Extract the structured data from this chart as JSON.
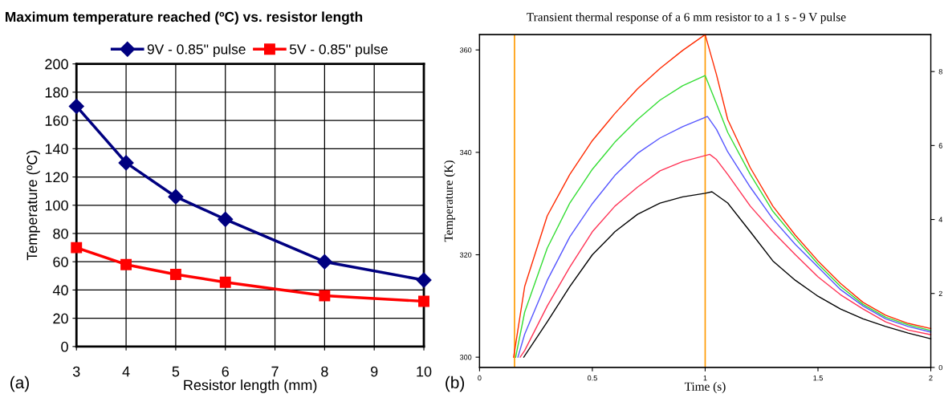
{
  "chart_data": [
    {
      "type": "line",
      "title": "Maximum temperature reached (ºC) vs. resistor length",
      "xlabel": "Resistor length (mm)",
      "ylabel": "Temperature (ºC)",
      "x": [
        3,
        4,
        5,
        6,
        8,
        10
      ],
      "xlim": [
        3,
        10
      ],
      "xticks": [
        3,
        4,
        5,
        6,
        7,
        8,
        9,
        10
      ],
      "ylim": [
        0,
        200
      ],
      "yticks": [
        0,
        20,
        40,
        60,
        80,
        100,
        120,
        140,
        160,
        180,
        200
      ],
      "grid": true,
      "legend": "top",
      "line_style": "solid",
      "annotations": [
        "(a)"
      ],
      "series": [
        {
          "name": "9V - 0.85'' pulse",
          "color": "#000080",
          "marker": "diamond",
          "values": [
            170,
            130,
            106,
            90,
            60,
            47
          ]
        },
        {
          "name": "5V - 0.85'' pulse",
          "color": "#ff0000",
          "marker": "square",
          "values": [
            70,
            58,
            51,
            45.5,
            36,
            32
          ]
        }
      ]
    },
    {
      "type": "line",
      "title": "Transient thermal response of a 6 mm resistor to a 1 s - 9 V pulse",
      "xlabel": "Time (s)",
      "ylabel": "Temperature (K)",
      "xlim": [
        0,
        2
      ],
      "xticks": [
        0,
        0.5,
        1,
        1.5,
        2
      ],
      "ylim": [
        298,
        363
      ],
      "yticks": [
        300,
        320,
        340,
        360
      ],
      "y2lim": [
        0,
        9
      ],
      "y2ticks": [
        0,
        2,
        4,
        6,
        8
      ],
      "grid": false,
      "annotations": [
        "(b)"
      ],
      "ref_lines": [
        {
          "axis": "x",
          "value": 0.155,
          "color": "#ff9900"
        },
        {
          "axis": "x",
          "value": 1.0,
          "color": "#ff9900"
        }
      ],
      "series": [
        {
          "color": "#ff2a00",
          "x": [
            0.151,
            0.2,
            0.3,
            0.4,
            0.5,
            0.6,
            0.7,
            0.8,
            0.9,
            1.0,
            1.05,
            1.1,
            1.2,
            1.3,
            1.4,
            1.5,
            1.6,
            1.7,
            1.8,
            1.9,
            2.0
          ],
          "values": [
            300,
            313.8,
            327.6,
            335.7,
            342.3,
            347.6,
            352.4,
            356.4,
            359.9,
            363,
            355.2,
            346.4,
            337,
            329.5,
            323.8,
            318.8,
            314.4,
            310.7,
            308.2,
            306.6,
            305.6
          ]
        },
        {
          "color": "#33dd33",
          "x": [
            0.16,
            0.2,
            0.3,
            0.4,
            0.5,
            0.6,
            0.7,
            0.8,
            0.9,
            1.0,
            1.05,
            1.1,
            1.2,
            1.3,
            1.4,
            1.5,
            1.6,
            1.7,
            1.8,
            1.9,
            2.0
          ],
          "values": [
            300,
            308.8,
            321.3,
            330.1,
            336.7,
            342,
            346.4,
            350.2,
            353,
            355,
            349.5,
            343.9,
            335.7,
            328.5,
            323.2,
            318.2,
            313.8,
            310.3,
            307.8,
            306.3,
            305.2
          ]
        },
        {
          "color": "#5555ff",
          "x": [
            0.17,
            0.2,
            0.3,
            0.4,
            0.5,
            0.6,
            0.7,
            0.8,
            0.9,
            1.01,
            1.05,
            1.1,
            1.2,
            1.3,
            1.4,
            1.5,
            1.6,
            1.7,
            1.8,
            1.9,
            2.0
          ],
          "values": [
            300,
            304.5,
            315,
            323.5,
            330,
            335.5,
            339.8,
            342.8,
            345,
            347,
            344.5,
            340.1,
            333.2,
            327,
            322,
            317.6,
            313.2,
            310,
            307.5,
            306,
            304.9
          ]
        },
        {
          "color": "#ff3355",
          "x": [
            0.18,
            0.2,
            0.3,
            0.4,
            0.5,
            0.6,
            0.7,
            0.8,
            0.9,
            1.02,
            1.05,
            1.1,
            1.2,
            1.3,
            1.4,
            1.5,
            1.6,
            1.7,
            1.8,
            1.9,
            2.0
          ],
          "values": [
            300,
            301.3,
            310,
            317.6,
            324.5,
            329.5,
            333.2,
            336.4,
            338.2,
            339.6,
            338.6,
            335.7,
            329.5,
            324.5,
            320,
            315.7,
            312.2,
            309.4,
            306.9,
            305.3,
            304.4
          ]
        },
        {
          "color": "#000000",
          "x": [
            0.196,
            0.3,
            0.4,
            0.5,
            0.6,
            0.7,
            0.8,
            0.9,
            1.0,
            1.03,
            1.1,
            1.2,
            1.3,
            1.4,
            1.5,
            1.6,
            1.7,
            1.8,
            1.9,
            2.0
          ],
          "values": [
            300,
            306.9,
            313.8,
            320,
            324.5,
            327.9,
            330.1,
            331.3,
            332,
            332.3,
            330.1,
            324.5,
            318.8,
            315,
            311.9,
            309.4,
            307.5,
            306,
            304.7,
            303.6
          ]
        }
      ]
    }
  ]
}
